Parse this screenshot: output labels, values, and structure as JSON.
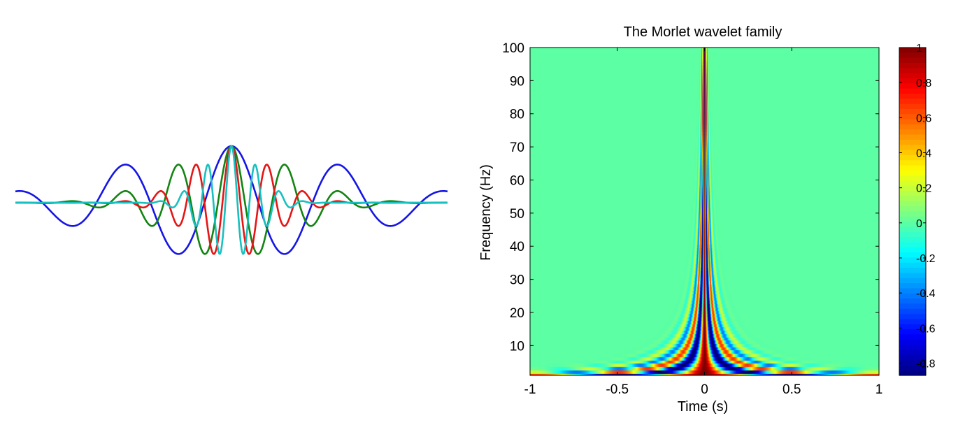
{
  "chart_data": [
    {
      "type": "line",
      "title": "",
      "xlabel": "",
      "ylabel": "",
      "axes_visible": false,
      "xlim": [
        -1,
        1
      ],
      "ylim": [
        -1.1,
        1.1
      ],
      "series": [
        {
          "color": "#1515e6",
          "freq_hz": 2,
          "cycles": 7
        },
        {
          "color": "#138413",
          "freq_hz": 4,
          "cycles": 7
        },
        {
          "color": "#e61515",
          "freq_hz": 6,
          "cycles": 7
        },
        {
          "color": "#18c0c0",
          "freq_hz": 9,
          "cycles": 7
        }
      ]
    },
    {
      "type": "heatmap",
      "title": "The Morlet wavelet family",
      "xlabel": "Time (s)",
      "ylabel": "Frequency (Hz)",
      "xlim": [
        -1,
        1
      ],
      "ylim": [
        1,
        100
      ],
      "x_ticks": [
        -1,
        -0.5,
        0,
        0.5,
        1
      ],
      "x_tick_labels": [
        "-1",
        "-0.5",
        "0",
        "0.5",
        "1"
      ],
      "y_ticks": [
        10,
        20,
        30,
        40,
        50,
        60,
        70,
        80,
        90,
        100
      ],
      "y_tick_labels": [
        "10",
        "20",
        "30",
        "40",
        "50",
        "60",
        "70",
        "80",
        "90",
        "100"
      ],
      "z_description": "real part of Morlet wavelet (7 cycles) at each frequency, normalized to peak 1",
      "colormap": "jet",
      "clim": [
        -0.87,
        1
      ],
      "colorbar": {
        "ticks": [
          1,
          0.8,
          0.6,
          0.4,
          0.2,
          0,
          -0.2,
          -0.4,
          -0.6,
          -0.8
        ],
        "tick_labels": [
          "1",
          "0.8",
          "0.6",
          "0.4",
          "0.2",
          "0",
          "-0.2",
          "-0.4",
          "-0.6",
          "-0.8"
        ]
      }
    }
  ]
}
